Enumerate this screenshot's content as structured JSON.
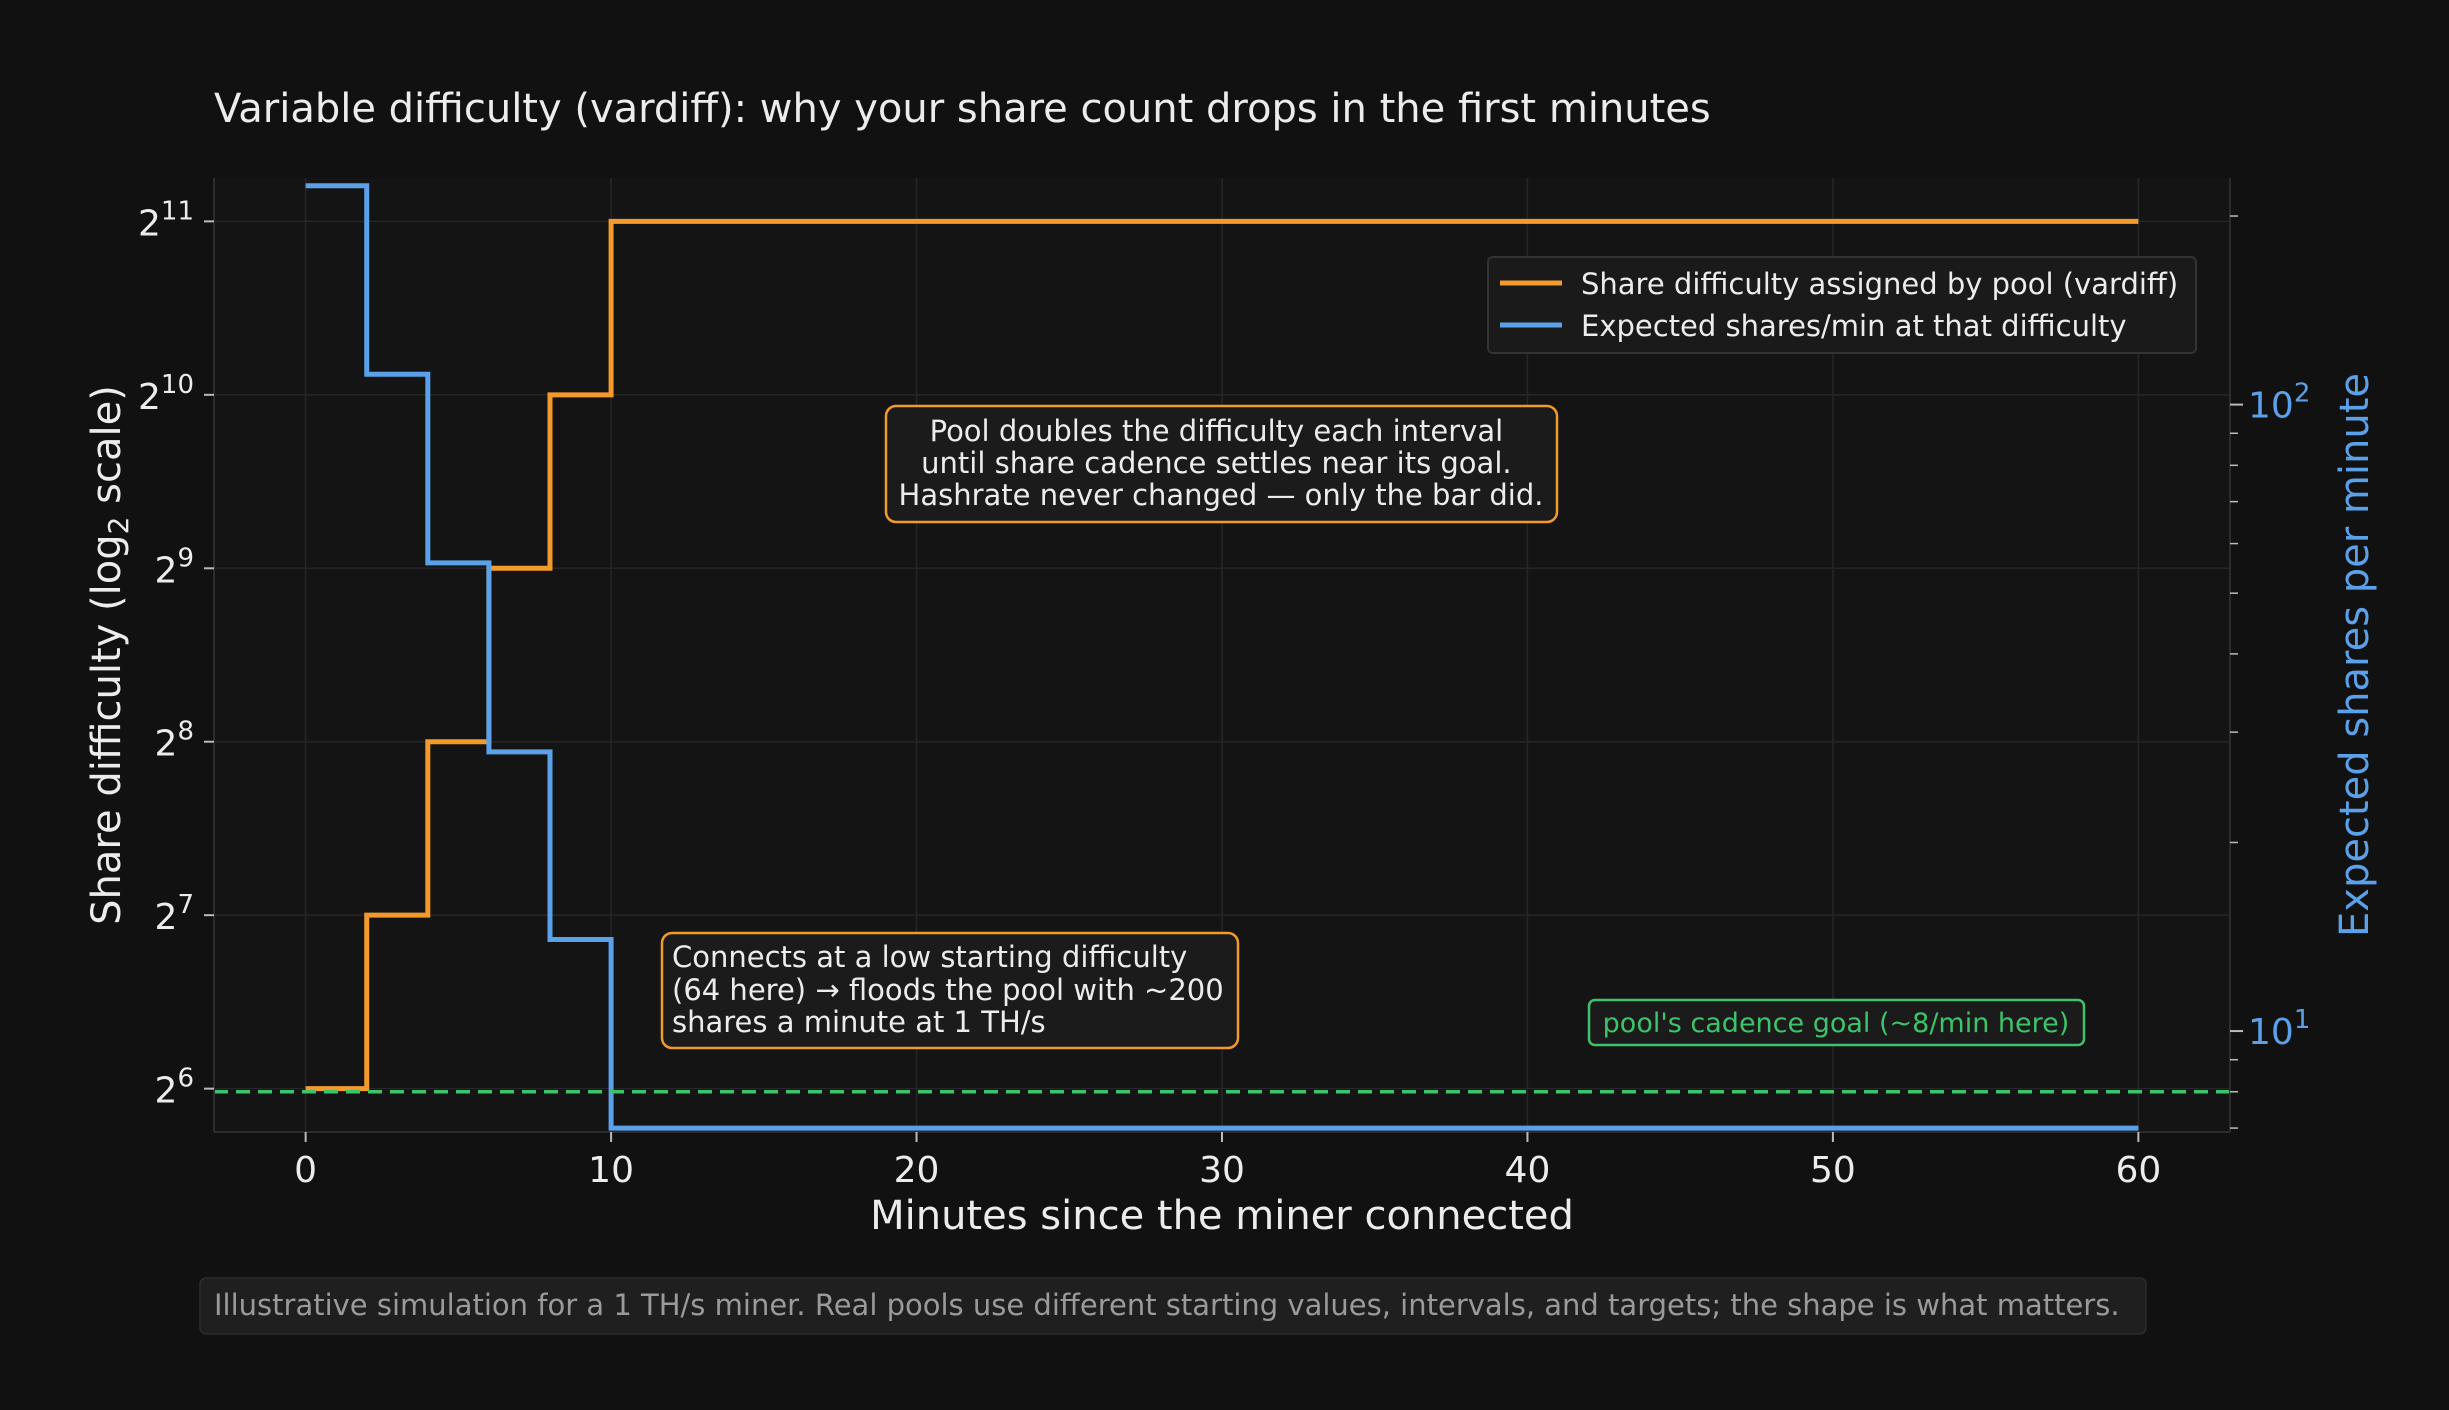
{
  "chart_data": {
    "type": "line",
    "title": "Variable difficulty (vardiff): why your share count drops in the first minutes",
    "xlabel": "Minutes since the miner connected",
    "ylabel_left_prefix": "Share difficulty (log",
    "ylabel_left_sub": "2",
    "ylabel_left_suffix": " scale)",
    "ylabel_right": "Expected shares per minute",
    "xlim": [
      -3,
      63
    ],
    "x_ticks": [
      0,
      10,
      20,
      30,
      40,
      50,
      60
    ],
    "y_left_scale": "log2",
    "y_left_exponent_range": [
      5.75,
      11.25
    ],
    "y_left_tick_exponents": [
      6,
      7,
      8,
      9,
      10,
      11
    ],
    "y_left_tick_base": "2",
    "y_right_scale": "log10",
    "y_right_lim": [
      6.9,
      230
    ],
    "y_right_major_ticks": [
      {
        "base": "10",
        "exp": "1",
        "value": 10
      },
      {
        "base": "10",
        "exp": "2",
        "value": 100
      }
    ],
    "y_right_minor_ticks": [
      7,
      8,
      9,
      20,
      30,
      40,
      50,
      60,
      70,
      80,
      90,
      200
    ],
    "grid": true,
    "legend_position": "top-right",
    "series": [
      {
        "name": "Share difficulty assigned by pool (vardiff)",
        "axis": "left",
        "color": "#f39a2c",
        "step": "post",
        "x": [
          0,
          2,
          4,
          6,
          8,
          10,
          60
        ],
        "y": [
          64,
          128,
          256,
          512,
          1024,
          2048,
          2048
        ]
      },
      {
        "name": "Expected shares/min at that difficulty",
        "axis": "right",
        "color": "#5aa1ea",
        "step": "post",
        "x": [
          0,
          2,
          4,
          6,
          8,
          10,
          60
        ],
        "y": [
          223.5,
          111.8,
          55.9,
          27.9,
          14.0,
          7.0,
          7.0
        ]
      }
    ],
    "goal_line": {
      "value_per_min": 8,
      "label": "pool's cadence goal (~8/min here)",
      "color": "#3dc46a"
    },
    "annotations": [
      {
        "id": "start",
        "lines": [
          "Connects at a low starting difficulty",
          "(64 here) → floods the pool with ~200",
          "shares a minute at 1 TH/s"
        ]
      },
      {
        "id": "doubling",
        "lines": [
          "Pool doubles the difficulty each interval",
          "until share cadence settles near its goal.",
          "Hashrate never changed — only the bar did."
        ]
      }
    ],
    "footnote": "Illustrative simulation for a 1 TH/s miner. Real pools use different starting values, intervals, and targets; the shape is what matters.",
    "colors": {
      "background": "#111111",
      "plot_area": "#141414",
      "text": "#ececec",
      "grid": "#262626",
      "right_axis": "#5aa1ea",
      "annotation_border": "#f39a2c"
    }
  }
}
